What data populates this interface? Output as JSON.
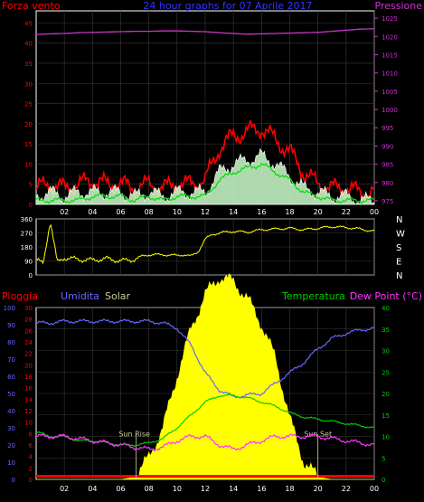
{
  "colors": {
    "background": "#000000",
    "frame": "#ffffff",
    "wind": "#ff0000",
    "wind_avg": "#00dd00",
    "gust_fill": "#ccffcc",
    "pressure": "#cc33cc",
    "direction": "#ffff00",
    "rain": "#ff0000",
    "humidity": "#6666ff",
    "solar": "#ffff00",
    "temperature": "#00cc00",
    "dewpoint": "#ff33ff",
    "grid": "#3a3a3a",
    "sun_line": "#cccc99"
  },
  "chart_data": [
    {
      "type": "area",
      "title": "24 hour graphs for 07 Aprile 2017",
      "left_label": "Forza vento",
      "right_label": "Pressione",
      "x_ticks": [
        "02",
        "04",
        "06",
        "08",
        "10",
        "12",
        "14",
        "16",
        "18",
        "20",
        "22",
        "00"
      ],
      "y_left_ticks": [
        "0",
        "5",
        "10",
        "15",
        "20",
        "25",
        "30",
        "35",
        "40",
        "45"
      ],
      "y_left_range": [
        0,
        48
      ],
      "y_right_ticks": [
        "975",
        "980",
        "985",
        "990",
        "995",
        "1000",
        "1005",
        "1010",
        "1015",
        "1020",
        "1025"
      ],
      "y_right_range": [
        974,
        1027
      ],
      "hours": [
        0,
        1,
        2,
        3,
        4,
        5,
        6,
        7,
        8,
        9,
        10,
        11,
        12,
        13,
        14,
        15,
        16,
        17,
        18,
        19,
        20,
        21,
        22,
        23,
        24
      ],
      "series": [
        {
          "name": "Gust",
          "values": [
            4,
            5,
            4,
            5,
            6,
            5,
            5,
            4,
            5,
            4,
            5,
            5,
            6,
            14,
            17,
            18,
            19,
            16,
            13,
            8,
            5,
            4,
            4,
            3,
            3
          ]
        },
        {
          "name": "Wind speed",
          "values": [
            2,
            3,
            2,
            3,
            3,
            3,
            3,
            2,
            3,
            2,
            3,
            3,
            3,
            8,
            10,
            11,
            12,
            10,
            7,
            4,
            3,
            2,
            2,
            1,
            1
          ]
        },
        {
          "name": "Wind average",
          "values": [
            1,
            1,
            1,
            1,
            2,
            2,
            2,
            1,
            2,
            1,
            2,
            2,
            2,
            6,
            8,
            9,
            10,
            8,
            6,
            3,
            2,
            1,
            1,
            1,
            1
          ]
        },
        {
          "name": "Pressione",
          "values": [
            1020.5,
            1020.7,
            1020.8,
            1021.0,
            1021.1,
            1021.2,
            1021.3,
            1021.4,
            1021.4,
            1021.5,
            1021.5,
            1021.4,
            1021.3,
            1021.0,
            1020.8,
            1020.6,
            1020.7,
            1020.8,
            1020.9,
            1021.0,
            1021.1,
            1021.4,
            1021.7,
            1022.0,
            1022.1
          ]
        }
      ]
    },
    {
      "type": "line",
      "y_ticks": [
        "0",
        "90",
        "180",
        "270",
        "360"
      ],
      "y_range": [
        0,
        360
      ],
      "compass_labels": [
        "N",
        "W",
        "S",
        "E",
        "N"
      ],
      "hours": [
        0,
        0.5,
        1,
        1.5,
        2,
        3,
        4,
        5,
        6,
        7,
        7.5,
        8,
        9,
        10,
        10.5,
        11,
        11.5,
        12,
        12.5,
        13,
        14,
        15,
        16,
        17,
        18,
        19,
        20,
        21,
        22,
        23,
        24
      ],
      "series": [
        {
          "name": "Direzione vento",
          "values": [
            100,
            70,
            350,
            80,
            110,
            100,
            95,
            105,
            90,
            100,
            120,
            130,
            130,
            125,
            130,
            120,
            150,
            230,
            260,
            270,
            280,
            275,
            290,
            295,
            300,
            290,
            300,
            310,
            305,
            295,
            280
          ]
        }
      ]
    },
    {
      "type": "line",
      "left_outer_label": "Pioggia",
      "left_inner_label": "Umidita",
      "solar_label": "Solar",
      "temp_label": "Temperatura",
      "dew_label": "Dew Point (°C)",
      "y_humidity_ticks": [
        "0",
        "10",
        "20",
        "30",
        "40",
        "50",
        "60",
        "70",
        "80",
        "90",
        "100"
      ],
      "y_rain_ticks": [
        "0",
        "2",
        "4",
        "6",
        "8",
        "10",
        "12",
        "14",
        "16",
        "18",
        "20",
        "22",
        "24",
        "26",
        "28",
        "30"
      ],
      "y_temp_ticks": [
        "0",
        "5",
        "10",
        "15",
        "20",
        "25",
        "30",
        "35",
        "40"
      ],
      "y_temp_range": [
        0,
        40
      ],
      "y_humidity_range": [
        0,
        100
      ],
      "x_ticks": [
        "02",
        "04",
        "06",
        "08",
        "10",
        "12",
        "14",
        "16",
        "18",
        "20",
        "22",
        "00"
      ],
      "annotations": [
        "Sun Rise",
        "Sun Set"
      ],
      "sun_rise_hour": 7.1,
      "sun_set_hour": 20.0,
      "hours": [
        0,
        1,
        2,
        3,
        4,
        5,
        6,
        7,
        8,
        9,
        10,
        11,
        12,
        13,
        14,
        15,
        16,
        17,
        18,
        19,
        20,
        21,
        22,
        23,
        24
      ],
      "series": [
        {
          "name": "Umidita",
          "values": [
            91,
            91,
            92,
            92,
            92,
            92,
            92,
            92,
            92,
            91,
            88,
            78,
            62,
            52,
            48,
            49,
            50,
            56,
            62,
            68,
            76,
            82,
            85,
            87,
            88
          ]
        },
        {
          "name": "Temperatura",
          "values": [
            11,
            10,
            10,
            9,
            9,
            8.5,
            8,
            8,
            8.5,
            9.5,
            12,
            15,
            18,
            19.5,
            19.5,
            19,
            18,
            17,
            15.5,
            14.5,
            14,
            13.5,
            13,
            12.5,
            12
          ]
        },
        {
          "name": "Dew Point",
          "values": [
            10,
            10,
            10,
            9.5,
            9,
            8.5,
            8,
            7.5,
            7,
            7.5,
            9,
            10,
            10,
            8,
            7,
            8,
            9,
            10,
            10,
            10,
            10,
            9.5,
            9,
            8.5,
            8
          ]
        },
        {
          "name": "Solar",
          "values": [
            0,
            0,
            0,
            0,
            0,
            0,
            0,
            0.5,
            5,
            12,
            24,
            35,
            43,
            47,
            46,
            42,
            36,
            28,
            14,
            4,
            0.5,
            0,
            0,
            0,
            0
          ]
        },
        {
          "name": "Pioggia",
          "values": [
            0.3,
            0.3,
            0.3,
            0.3,
            0.3,
            0.3,
            0.3,
            0.3,
            0.3,
            0.3,
            0.3,
            0.3,
            0.3,
            0.3,
            0.3,
            0.3,
            0.3,
            0.3,
            0.3,
            0.3,
            0.3,
            0.3,
            0.3,
            0.3,
            0.3
          ]
        }
      ]
    }
  ]
}
